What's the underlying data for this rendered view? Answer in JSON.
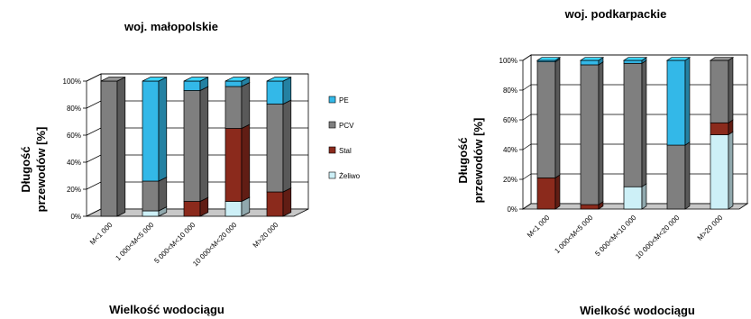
{
  "chart_data": [
    {
      "type": "bar",
      "stacked": true,
      "title": "woj. małopolskie",
      "xlabel": "Wielkość wodociągu",
      "ylabel": [
        "Długość",
        "przewodów [%]"
      ],
      "ylim": [
        0,
        100
      ],
      "yticks": [
        "0%",
        "20%",
        "40%",
        "60%",
        "80%",
        "100%"
      ],
      "categories": [
        "M<1 000",
        "1 000<M<5 000",
        "5 000<M<10 000",
        "10 000<M<20 000",
        "M>20 000"
      ],
      "series": [
        {
          "name": "Żeliwo",
          "values": [
            0,
            4,
            0,
            11,
            0
          ]
        },
        {
          "name": "Stal",
          "values": [
            0,
            0,
            11,
            54,
            18
          ]
        },
        {
          "name": "PCV",
          "values": [
            100,
            22,
            82,
            31,
            65
          ]
        },
        {
          "name": "PE",
          "values": [
            0,
            74,
            7,
            4,
            17
          ]
        }
      ],
      "legend": "right"
    },
    {
      "type": "bar",
      "stacked": true,
      "title": "woj. podkarpackie",
      "xlabel": "Wielkość wodociągu",
      "ylabel": [
        "Długość",
        "przewodów [%]"
      ],
      "ylim": [
        0,
        100
      ],
      "yticks": [
        "0%",
        "20%",
        "40%",
        "60%",
        "80%",
        "100%"
      ],
      "categories": [
        "M<1 000",
        "1 000<M<5 000",
        "5 000<M<10 000",
        "10 000<M<20 000",
        "M>20 000"
      ],
      "series": [
        {
          "name": "Żeliwo",
          "values": [
            0,
            0,
            15,
            0,
            50
          ]
        },
        {
          "name": "Stal",
          "values": [
            21,
            3,
            0,
            0,
            8
          ]
        },
        {
          "name": "PCV",
          "values": [
            78,
            94,
            83,
            43,
            42
          ]
        },
        {
          "name": "PE",
          "values": [
            1,
            3,
            2,
            57,
            0
          ]
        }
      ]
    }
  ],
  "colors": {
    "PE": "#33b8e8",
    "PCV": "#7f7f7f",
    "Stal": "#8b2a1c",
    "Żeliwo": "#cdf0f7"
  }
}
